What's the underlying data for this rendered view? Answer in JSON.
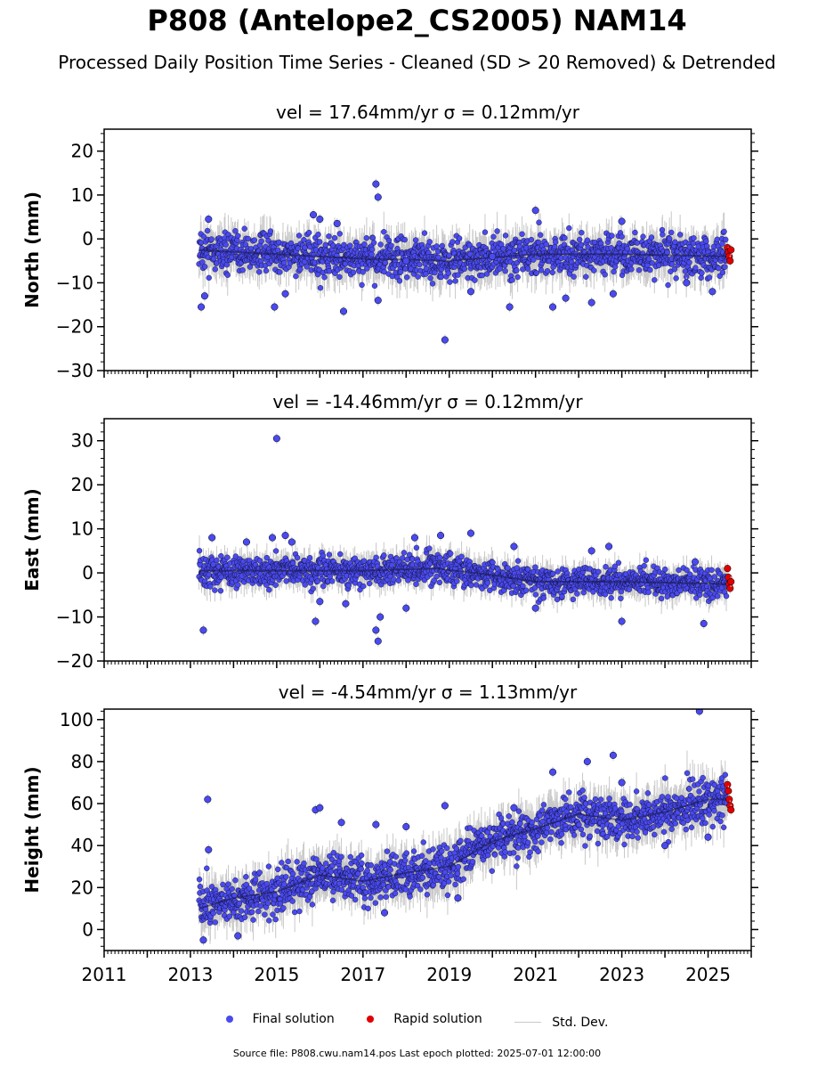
{
  "figure": {
    "title": "P808 (Antelope2_CS2005) NAM14",
    "subtitle": "Processed Daily Position Time Series - Cleaned (SD > 20 Removed) & Detrended",
    "footer": "Source file: P808.cwu.nam14.pos  Last epoch plotted: 2025-07-01 12:00:00"
  },
  "legend": {
    "final_label": "Final solution",
    "rapid_label": "Rapid solution",
    "std_label": "Std. Dev."
  },
  "colors": {
    "final": "#4a4af0",
    "rapid": "#e00000",
    "std": "#c8c8c8",
    "edge": "#000000"
  },
  "chart_data": [
    {
      "type": "scatter",
      "title": "vel = 17.64mm/yr   σ = 0.12mm/yr",
      "ylabel": "North (mm)",
      "xlim": [
        2011,
        2026
      ],
      "ylim": [
        -30,
        25
      ],
      "yticks": [
        -30,
        -20,
        -10,
        0,
        10,
        20
      ],
      "yminor_step": 2,
      "show_xticklabels": false,
      "series": [
        {
          "name": "Final solution",
          "color": "#4a4af0",
          "x": [
            2013.25,
            2013.33,
            2013.42,
            2014.95,
            2015.2,
            2015.85,
            2016.0,
            2016.4,
            2016.55,
            2017.3,
            2017.35,
            2017.35,
            2018.0,
            2018.9,
            2019.5,
            2020.0,
            2020.4,
            2021.0,
            2021.4,
            2021.7,
            2022.3,
            2022.8,
            2023.0,
            2024.5,
            2025.1
          ],
          "y": [
            -15.5,
            -13,
            4.5,
            -15.5,
            -12.5,
            5.5,
            4.5,
            3.5,
            -16.5,
            12.5,
            9.5,
            -14,
            -5,
            -23,
            -12,
            -4,
            -15.5,
            6.5,
            -15.5,
            -13.5,
            -14.5,
            -12.5,
            4,
            -10,
            -12
          ]
        },
        {
          "name": "Rapid solution",
          "color": "#e00000",
          "x": [
            2025.45,
            2025.47,
            2025.49,
            2025.51,
            2025.53
          ],
          "y": [
            -2,
            -3,
            -4,
            -5,
            -2.5
          ]
        }
      ],
      "trend": {
        "x": [
          2013.2,
          2015,
          2017,
          2019,
          2021,
          2023,
          2025.5
        ],
        "y": [
          -2.5,
          -3.5,
          -4.5,
          -5,
          -3.5,
          -3.5,
          -4
        ]
      },
      "band_sd": 3.5
    },
    {
      "type": "scatter",
      "title": "vel = -14.46mm/yr   σ = 0.12mm/yr",
      "ylabel": "East (mm)",
      "xlim": [
        2011,
        2026
      ],
      "ylim": [
        -20,
        35
      ],
      "yticks": [
        -20,
        -10,
        0,
        10,
        20,
        30
      ],
      "yminor_step": 2,
      "show_xticklabels": false,
      "series": [
        {
          "name": "Final solution",
          "color": "#4a4af0",
          "x": [
            2013.3,
            2013.5,
            2014.3,
            2014.9,
            2015.0,
            2015.2,
            2015.35,
            2015.9,
            2016.0,
            2016.6,
            2017.3,
            2017.35,
            2017.4,
            2018.0,
            2018.2,
            2018.8,
            2019.5,
            2020.5,
            2021.0,
            2022.3,
            2022.7,
            2023.0,
            2024.7,
            2024.9
          ],
          "y": [
            -13,
            8,
            7,
            8,
            30.5,
            8.5,
            7,
            -11,
            -6.5,
            -7,
            -13,
            -15.5,
            -10,
            -8,
            8,
            8.5,
            9,
            6,
            -8,
            5,
            6,
            -11,
            2.5,
            -11.5
          ]
        },
        {
          "name": "Rapid solution",
          "color": "#e00000",
          "x": [
            2025.45,
            2025.47,
            2025.49,
            2025.51,
            2025.53
          ],
          "y": [
            1,
            -1,
            -2.5,
            -3.5,
            -2
          ]
        }
      ],
      "trend": {
        "x": [
          2013.2,
          2015,
          2017,
          2018.7,
          2020,
          2021,
          2023,
          2025.5
        ],
        "y": [
          0.5,
          0.5,
          0.5,
          1,
          -0.5,
          -2,
          -2,
          -2.5
        ]
      },
      "band_sd": 2.5
    },
    {
      "type": "scatter",
      "title": "vel = -4.54mm/yr   σ = 1.13mm/yr",
      "ylabel": "Height (mm)",
      "xlim": [
        2011,
        2026
      ],
      "ylim": [
        -10,
        105
      ],
      "yticks": [
        0,
        20,
        40,
        60,
        80,
        100
      ],
      "yminor_step": 4,
      "xticks": [
        2011,
        2013,
        2015,
        2017,
        2019,
        2021,
        2023,
        2025
      ],
      "show_xticklabels": true,
      "series": [
        {
          "name": "Final solution",
          "color": "#4a4af0",
          "x": [
            2013.3,
            2013.4,
            2013.42,
            2014.1,
            2015.9,
            2016.0,
            2016.5,
            2017.3,
            2017.5,
            2018.0,
            2018.9,
            2019.2,
            2020.5,
            2021.4,
            2022.2,
            2022.8,
            2023.0,
            2024.0,
            2024.8,
            2025.0
          ],
          "y": [
            -5,
            62,
            38,
            -3,
            57,
            58,
            51,
            50,
            8,
            49,
            59,
            15,
            58,
            75,
            80,
            83,
            70,
            40,
            104,
            44
          ]
        },
        {
          "name": "Rapid solution",
          "color": "#e00000",
          "x": [
            2025.45,
            2025.47,
            2025.49,
            2025.51,
            2025.53
          ],
          "y": [
            69,
            66,
            62,
            59,
            57
          ]
        }
      ],
      "trend": {
        "x": [
          2013.2,
          2014,
          2015,
          2016,
          2017,
          2018,
          2019,
          2020,
          2021,
          2022,
          2023,
          2024,
          2025,
          2025.5
        ],
        "y": [
          10,
          15,
          18,
          26,
          23,
          27,
          30,
          42,
          48,
          55,
          52,
          56,
          62,
          62
        ]
      },
      "band_sd": 8
    }
  ]
}
